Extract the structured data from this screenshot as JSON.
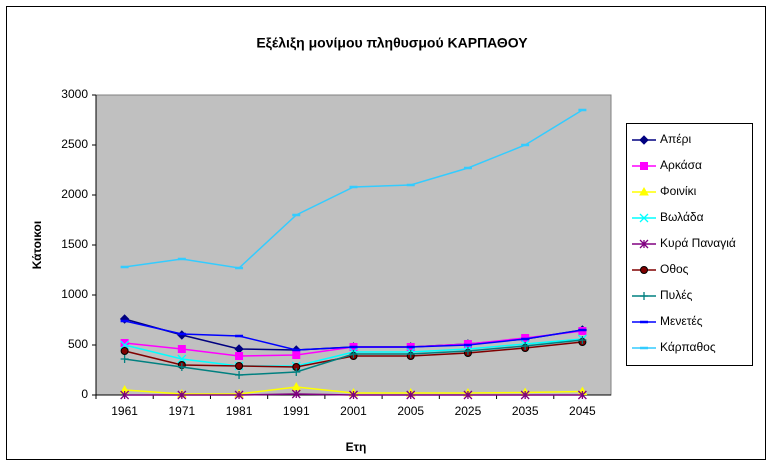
{
  "chart_data": {
    "type": "line",
    "title": "Εξέλιξη μονίμου πληθυσμού ΚΑΡΠΑΘΟΥ",
    "x_label": "Ετη",
    "y_label": "Κάτοικοι",
    "categories": [
      "1961",
      "1971",
      "1981",
      "1991",
      "2001",
      "2005",
      "2025",
      "2035",
      "2045"
    ],
    "ylim": [
      0,
      3000
    ],
    "yticks": [
      0,
      500,
      1000,
      1500,
      2000,
      2500,
      3000
    ],
    "grid": false,
    "legend": "right",
    "series": [
      {
        "name": "Απέρι",
        "color": "#000080",
        "marker": "diamond",
        "values": [
          760,
          600,
          460,
          450,
          480,
          480,
          510,
          560,
          650
        ]
      },
      {
        "name": "Αρκάσα",
        "color": "#FF00FF",
        "marker": "square",
        "values": [
          520,
          460,
          390,
          400,
          480,
          480,
          510,
          570,
          640
        ]
      },
      {
        "name": "Φοινίκι",
        "color": "#FFFF00",
        "marker": "triangle",
        "values": [
          50,
          10,
          10,
          80,
          20,
          20,
          20,
          25,
          35
        ]
      },
      {
        "name": "Βωλάδα",
        "color": "#00FFFF",
        "marker": "x",
        "values": [
          500,
          360,
          290,
          290,
          430,
          430,
          460,
          510,
          560
        ]
      },
      {
        "name": "Κυρά Παναγιά",
        "color": "#800080",
        "marker": "asterisk",
        "values": [
          0,
          0,
          0,
          10,
          0,
          0,
          0,
          0,
          0
        ]
      },
      {
        "name": "Οθος",
        "color": "#800000",
        "marker": "circle",
        "values": [
          440,
          300,
          290,
          280,
          390,
          390,
          420,
          470,
          530
        ]
      },
      {
        "name": "Πυλές",
        "color": "#008080",
        "marker": "plus",
        "values": [
          360,
          280,
          200,
          230,
          410,
          410,
          440,
          490,
          550
        ]
      },
      {
        "name": "Μενετές",
        "color": "#0000FF",
        "marker": "dash",
        "values": [
          740,
          610,
          590,
          450,
          480,
          480,
          500,
          560,
          650
        ]
      },
      {
        "name": "Κάρπαθος",
        "color": "#33CCFF",
        "marker": "dash",
        "values": [
          1280,
          1360,
          1270,
          1800,
          2080,
          2100,
          2270,
          2500,
          2850
        ]
      }
    ]
  }
}
